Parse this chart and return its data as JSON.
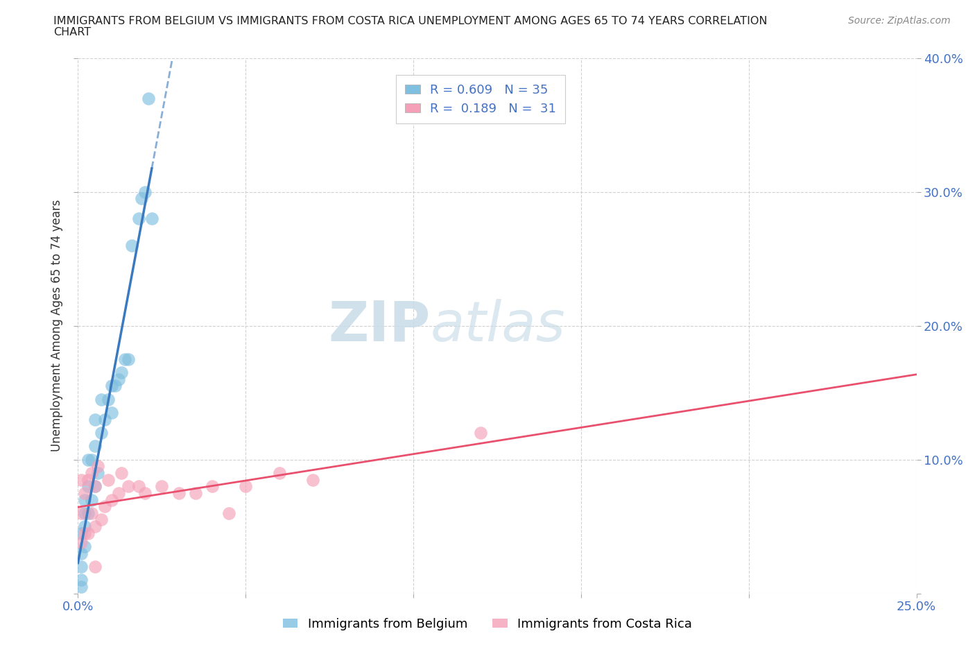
{
  "title_line1": "IMMIGRANTS FROM BELGIUM VS IMMIGRANTS FROM COSTA RICA UNEMPLOYMENT AMONG AGES 65 TO 74 YEARS CORRELATION",
  "title_line2": "CHART",
  "source": "Source: ZipAtlas.com",
  "ylabel": "Unemployment Among Ages 65 to 74 years",
  "xlim": [
    0.0,
    0.25
  ],
  "ylim": [
    0.0,
    0.4
  ],
  "xticks": [
    0.0,
    0.05,
    0.1,
    0.15,
    0.2,
    0.25
  ],
  "yticks": [
    0.0,
    0.1,
    0.2,
    0.3,
    0.4
  ],
  "color_blue": "#7fbfdf",
  "color_pink": "#f4a0b8",
  "color_blue_line": "#3b7abf",
  "color_pink_line": "#e8506e",
  "watermark_zip": "ZIP",
  "watermark_atlas": "atlas",
  "belgium_x": [
    0.001,
    0.001,
    0.001,
    0.001,
    0.001,
    0.002,
    0.002,
    0.002,
    0.002,
    0.003,
    0.003,
    0.003,
    0.004,
    0.004,
    0.005,
    0.005,
    0.005,
    0.006,
    0.007,
    0.007,
    0.008,
    0.009,
    0.01,
    0.01,
    0.011,
    0.012,
    0.013,
    0.014,
    0.015,
    0.016,
    0.018,
    0.019,
    0.02,
    0.021,
    0.022
  ],
  "belgium_y": [
    0.005,
    0.01,
    0.02,
    0.03,
    0.045,
    0.035,
    0.05,
    0.06,
    0.07,
    0.06,
    0.08,
    0.1,
    0.07,
    0.1,
    0.08,
    0.11,
    0.13,
    0.09,
    0.12,
    0.145,
    0.13,
    0.145,
    0.135,
    0.155,
    0.155,
    0.16,
    0.165,
    0.175,
    0.175,
    0.26,
    0.28,
    0.295,
    0.3,
    0.37,
    0.28
  ],
  "costarica_x": [
    0.001,
    0.001,
    0.001,
    0.002,
    0.002,
    0.003,
    0.003,
    0.004,
    0.004,
    0.005,
    0.005,
    0.006,
    0.007,
    0.008,
    0.009,
    0.01,
    0.012,
    0.013,
    0.015,
    0.018,
    0.02,
    0.025,
    0.03,
    0.035,
    0.04,
    0.045,
    0.05,
    0.06,
    0.07,
    0.12,
    0.005
  ],
  "costarica_y": [
    0.038,
    0.06,
    0.085,
    0.045,
    0.075,
    0.045,
    0.085,
    0.06,
    0.09,
    0.05,
    0.08,
    0.095,
    0.055,
    0.065,
    0.085,
    0.07,
    0.075,
    0.09,
    0.08,
    0.08,
    0.075,
    0.08,
    0.075,
    0.075,
    0.08,
    0.06,
    0.08,
    0.09,
    0.085,
    0.12,
    0.02
  ]
}
